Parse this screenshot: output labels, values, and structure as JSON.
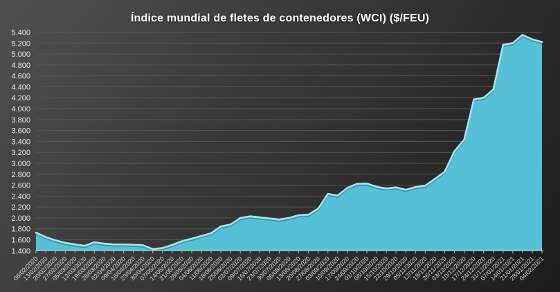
{
  "title": "Índice mundial de fletes de contenedores (WCI) ($/FEU)",
  "colors": {
    "background_top_left": "#505050",
    "background_bottom_right": "#1c1c1c",
    "area_fill": "#56c0d6",
    "area_edge_highlight": "#a0e7f2",
    "area_edge_shadow": "#2f95ad",
    "gridline": "#555555",
    "axis_line": "#b3b3b3",
    "y_label_color": "#e8e8e8",
    "x_label_color": "#d4d4d4",
    "title_color": "#ffffff"
  },
  "chart_data": {
    "type": "area",
    "title": "Índice mundial de fletes de contenedores (WCI) ($/FEU)",
    "xlabel": "",
    "ylabel": "",
    "ylim": [
      1400,
      5400
    ],
    "ytick_step": 200,
    "grid": true,
    "legend_position": "none",
    "y_tick_labels": [
      "1.400",
      "1.600",
      "1.800",
      "2.000",
      "2.200",
      "2.400",
      "2.600",
      "2.800",
      "3.000",
      "3.200",
      "3.400",
      "3.600",
      "3.800",
      "4.000",
      "4.200",
      "4.400",
      "4.600",
      "4.800",
      "5.000",
      "5.200",
      "5.400"
    ],
    "x": [
      "06/02/2020",
      "13/02/2020",
      "20/02/2020",
      "27/02/2020",
      "05/03/2020",
      "12/03/2020",
      "19/03/2020",
      "26/03/2020",
      "02/04/2020",
      "09/04/2020",
      "16/04/2020",
      "23/04/2020",
      "30/04/2020",
      "07/05/2020",
      "14/05/2020",
      "21/05/2020",
      "28/05/2020",
      "04/06/2020",
      "11/06/2020",
      "18/06/2020",
      "25/06/2020",
      "02/07/2020",
      "09/07/2020",
      "16/07/2020",
      "23/07/2020",
      "30/07/2020",
      "06/08/2020",
      "13/08/2020",
      "20/08/2020",
      "27/08/2020",
      "03/09/2020",
      "10/09/2020",
      "17/09/2020",
      "24/09/2020",
      "01/10/2020",
      "08/10/2020",
      "15/10/2020",
      "22/10/2020",
      "29/10/2020",
      "05/11/2020",
      "12/11/2020",
      "19/11/2020",
      "26/11/2020",
      "03/12/2020",
      "10/12/2020",
      "17/12/2020",
      "24/12/2020",
      "31/12/2020",
      "07/01/2021",
      "14/01/2021",
      "21/01/2021",
      "28/01/2021",
      "04/02/2021"
    ],
    "values": [
      1730,
      1650,
      1590,
      1545,
      1515,
      1490,
      1555,
      1530,
      1515,
      1515,
      1510,
      1500,
      1430,
      1450,
      1505,
      1575,
      1620,
      1670,
      1720,
      1845,
      1880,
      2000,
      2030,
      2010,
      1990,
      1970,
      2000,
      2050,
      2060,
      2170,
      2440,
      2410,
      2550,
      2625,
      2630,
      2570,
      2540,
      2560,
      2515,
      2565,
      2590,
      2715,
      2845,
      3220,
      3430,
      4170,
      4200,
      4350,
      5170,
      5200,
      5350,
      5270,
      5220
    ]
  }
}
